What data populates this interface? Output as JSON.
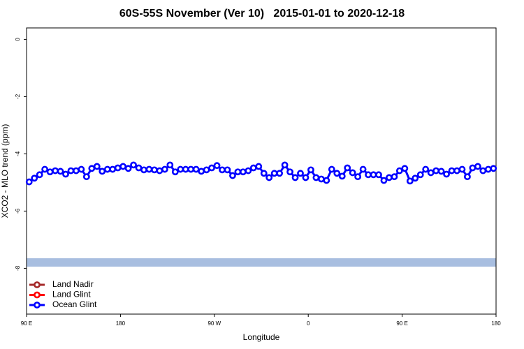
{
  "chart_data": {
    "type": "line",
    "title": "60S-55S November (Ver 10)   2015-01-01 to 2020-12-18",
    "xlabel": "Longitude",
    "ylabel": "XCO2 - MLO trend (ppm)",
    "xlim": [
      90,
      540
    ],
    "xticks": [
      {
        "value": 90,
        "label": "90 E"
      },
      180,
      {
        "value": 270,
        "label": "90 W"
      },
      {
        "value": 360,
        "label": "0"
      },
      {
        "value": 450,
        "label": "90 E"
      },
      {
        "value": 540,
        "label": "180"
      }
    ],
    "ylim": [
      -9.6,
      0.4
    ],
    "yticks": [
      0,
      -2,
      -4,
      -6,
      -8
    ],
    "legend": "bottom-left",
    "x": [
      92.5,
      97.5,
      102.5,
      107.5,
      112.5,
      117.5,
      122.5,
      127.5,
      132.5,
      137.5,
      142.5,
      147.5,
      152.5,
      157.5,
      162.5,
      167.5,
      172.5,
      177.5,
      182.5,
      187.5,
      192.5,
      197.5,
      202.5,
      207.5,
      212.5,
      217.5,
      222.5,
      227.5,
      232.5,
      237.5,
      242.5,
      247.5,
      252.5,
      257.5,
      262.5,
      267.5,
      272.5,
      277.5,
      282.5,
      287.5,
      292.5,
      297.5,
      302.5,
      307.5,
      312.5,
      317.5,
      322.5,
      327.5,
      332.5,
      337.5,
      342.5,
      347.5,
      352.5,
      357.5,
      362.5,
      367.5,
      372.5,
      377.5,
      382.5,
      387.5,
      392.5,
      397.5,
      402.5,
      407.5,
      412.5,
      417.5,
      422.5,
      427.5,
      432.5,
      437.5,
      442.5,
      447.5,
      452.5,
      457.5,
      462.5,
      467.5,
      472.5,
      477.5,
      482.5,
      487.5,
      492.5,
      497.5,
      502.5,
      507.5,
      512.5,
      517.5,
      522.5,
      527.5,
      532.5,
      537.5
    ],
    "series": [
      {
        "name": "Land Nadir",
        "color": "#a52a2a",
        "values": [
          null,
          null,
          null,
          null,
          null,
          null,
          null,
          null,
          null,
          null,
          null,
          null,
          null,
          null,
          null,
          null,
          null,
          null,
          null,
          null,
          null,
          null,
          null,
          null,
          null,
          null,
          null,
          null,
          null,
          null,
          null,
          null,
          null,
          null,
          null,
          null,
          null,
          null,
          null,
          null,
          null,
          null,
          null,
          null,
          null,
          null,
          null,
          null,
          null,
          null,
          null,
          null,
          null,
          null,
          null,
          null,
          null,
          null,
          null,
          null,
          null,
          null,
          null,
          null,
          null,
          null,
          null,
          null,
          null,
          null,
          null,
          null,
          null,
          null,
          null,
          null,
          null,
          null,
          null,
          null,
          null,
          null,
          null,
          null,
          null,
          null,
          null,
          null,
          null,
          null
        ]
      },
      {
        "name": "Land Glint",
        "color": "#ff0000",
        "values": [
          null,
          null,
          null,
          null,
          null,
          null,
          null,
          null,
          null,
          null,
          null,
          null,
          null,
          null,
          null,
          null,
          null,
          null,
          null,
          null,
          null,
          null,
          null,
          null,
          null,
          null,
          null,
          null,
          null,
          null,
          null,
          null,
          null,
          null,
          null,
          null,
          null,
          null,
          null,
          null,
          null,
          null,
          null,
          null,
          null,
          null,
          null,
          null,
          null,
          null,
          null,
          null,
          null,
          null,
          null,
          null,
          null,
          null,
          null,
          null,
          null,
          null,
          null,
          null,
          null,
          null,
          null,
          null,
          null,
          null,
          null,
          null,
          null,
          null,
          null,
          null,
          null,
          null,
          null,
          null,
          null,
          null,
          null,
          null,
          null,
          null,
          null,
          null,
          null,
          null
        ]
      },
      {
        "name": "Ocean Glint",
        "color": "#0000ff",
        "values": [
          -4.98,
          -4.85,
          -4.73,
          -4.54,
          -4.63,
          -4.59,
          -4.61,
          -4.71,
          -4.59,
          -4.59,
          -4.54,
          -4.8,
          -4.51,
          -4.44,
          -4.61,
          -4.54,
          -4.54,
          -4.49,
          -4.44,
          -4.51,
          -4.39,
          -4.49,
          -4.56,
          -4.54,
          -4.56,
          -4.59,
          -4.54,
          -4.39,
          -4.63,
          -4.54,
          -4.54,
          -4.54,
          -4.54,
          -4.61,
          -4.56,
          -4.49,
          -4.41,
          -4.56,
          -4.56,
          -4.76,
          -4.63,
          -4.63,
          -4.59,
          -4.49,
          -4.44,
          -4.68,
          -4.83,
          -4.68,
          -4.68,
          -4.39,
          -4.63,
          -4.83,
          -4.68,
          -4.83,
          -4.56,
          -4.83,
          -4.88,
          -4.93,
          -4.54,
          -4.68,
          -4.78,
          -4.49,
          -4.66,
          -4.8,
          -4.54,
          -4.73,
          -4.73,
          -4.73,
          -4.93,
          -4.83,
          -4.8,
          -4.59,
          -4.51,
          -4.95,
          -4.85,
          -4.73,
          -4.54,
          -4.66,
          -4.59,
          -4.61,
          -4.71,
          -4.59,
          -4.59,
          -4.54,
          -4.8,
          -4.49,
          -4.44,
          -4.59,
          -4.54,
          -4.51
        ]
      }
    ]
  }
}
